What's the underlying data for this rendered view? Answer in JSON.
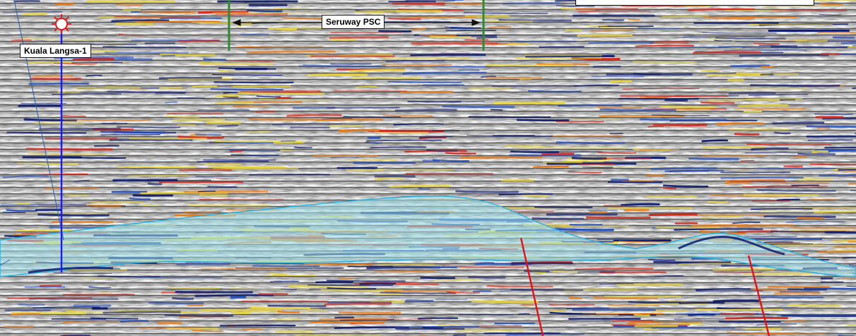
{
  "well": {
    "name": "Kuala Langsa-1",
    "symbol": "gas-show-well-icon",
    "color": "#d81e1e",
    "track_color": "#1a1aff"
  },
  "block": {
    "name": "Seruway PSC",
    "boundary_color": "#2f8a2f"
  },
  "colors": {
    "peak_dark": "#0d1a6b",
    "peak_mid": "#2850b8",
    "trough_red": "#d5281a",
    "trough_orange": "#e97a16",
    "trough_yellow": "#e9d43a",
    "neutral": "#c9c9c9",
    "body_fill": "#9fe4ee",
    "body_outline": "#2aaedc",
    "fault": "#e0111d"
  }
}
